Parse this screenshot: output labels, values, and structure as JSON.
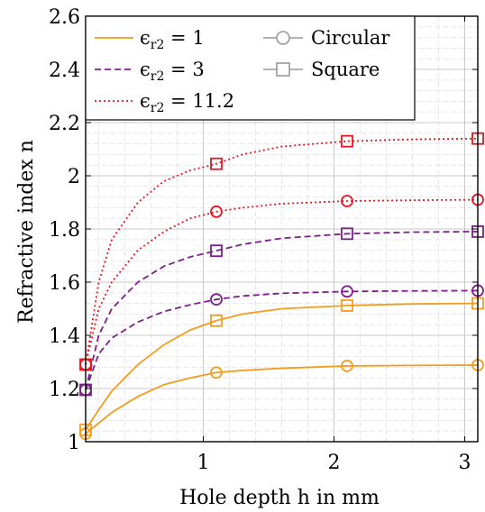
{
  "chart_data": {
    "type": "line",
    "xlabel": "Hole depth h in mm",
    "ylabel": "Refractive index n",
    "xlim": [
      0.1,
      3.1
    ],
    "ylim": [
      1.0,
      2.6
    ],
    "xticks": [
      1,
      2,
      3
    ],
    "yticks": [
      1,
      1.2,
      1.4,
      1.6,
      1.8,
      2.0,
      2.2,
      2.4,
      2.6
    ],
    "ytick_labels": [
      "1",
      "1.2",
      "1.4",
      "1.6",
      "1.8",
      "2",
      "2.2",
      "2.4",
      "2.6"
    ],
    "grid": true,
    "minor_grid": true,
    "legend_position": "top-left",
    "marker_x": [
      0.1,
      1.1,
      2.1,
      3.1
    ],
    "series": [
      {
        "name": "ε_r2 = 1, Circular",
        "permittivity": "1",
        "shape": "Circular",
        "color": "#f39c20",
        "dash": "solid",
        "x": [
          0.1,
          0.2,
          0.3,
          0.5,
          0.7,
          0.9,
          1.1,
          1.3,
          1.6,
          2.1,
          2.6,
          3.1
        ],
        "y": [
          1.03,
          1.07,
          1.11,
          1.17,
          1.215,
          1.24,
          1.26,
          1.268,
          1.276,
          1.285,
          1.287,
          1.288
        ]
      },
      {
        "name": "ε_r2 = 1, Square",
        "permittivity": "1",
        "shape": "Square",
        "color": "#f39c20",
        "dash": "solid",
        "x": [
          0.1,
          0.2,
          0.3,
          0.5,
          0.7,
          0.9,
          1.1,
          1.3,
          1.6,
          2.1,
          2.6,
          3.1
        ],
        "y": [
          1.045,
          1.12,
          1.19,
          1.29,
          1.365,
          1.42,
          1.455,
          1.48,
          1.5,
          1.512,
          1.518,
          1.52
        ]
      },
      {
        "name": "ε_r2 = 3, Circular",
        "permittivity": "3",
        "shape": "Circular",
        "color": "#7e1e8c",
        "dash": "dashed",
        "x": [
          0.1,
          0.2,
          0.3,
          0.5,
          0.7,
          0.9,
          1.1,
          1.3,
          1.6,
          2.1,
          2.6,
          3.1
        ],
        "y": [
          1.195,
          1.33,
          1.39,
          1.45,
          1.49,
          1.515,
          1.535,
          1.548,
          1.558,
          1.565,
          1.567,
          1.568
        ]
      },
      {
        "name": "ε_r2 = 3, Square",
        "permittivity": "3",
        "shape": "Square",
        "color": "#7e1e8c",
        "dash": "dashed",
        "x": [
          0.1,
          0.2,
          0.3,
          0.5,
          0.7,
          0.9,
          1.1,
          1.3,
          1.6,
          2.1,
          2.6,
          3.1
        ],
        "y": [
          1.195,
          1.4,
          1.5,
          1.6,
          1.66,
          1.695,
          1.718,
          1.742,
          1.765,
          1.782,
          1.788,
          1.79
        ]
      },
      {
        "name": "ε_r2 = 11.2, Circular",
        "permittivity": "11.2",
        "shape": "Circular",
        "color": "#e8141e",
        "dash": "dotted",
        "x": [
          0.1,
          0.2,
          0.3,
          0.5,
          0.7,
          0.9,
          1.1,
          1.3,
          1.6,
          2.1,
          2.6,
          3.1
        ],
        "y": [
          1.29,
          1.5,
          1.6,
          1.72,
          1.79,
          1.84,
          1.865,
          1.88,
          1.895,
          1.905,
          1.908,
          1.91
        ]
      },
      {
        "name": "ε_r2 = 11.2, Square",
        "permittivity": "11.2",
        "shape": "Square",
        "color": "#e8141e",
        "dash": "dotted",
        "x": [
          0.1,
          0.2,
          0.3,
          0.5,
          0.7,
          0.9,
          1.1,
          1.3,
          1.6,
          2.1,
          2.6,
          3.1
        ],
        "y": [
          1.29,
          1.6,
          1.76,
          1.9,
          1.98,
          2.02,
          2.045,
          2.08,
          2.11,
          2.13,
          2.137,
          2.14
        ]
      }
    ],
    "legend": {
      "lines": [
        {
          "prefix": "ϵ",
          "sub": "r2",
          "suffix": " = 1",
          "color": "#f39c20",
          "dash": "solid"
        },
        {
          "prefix": "ϵ",
          "sub": "r2",
          "suffix": " = 3",
          "color": "#7e1e8c",
          "dash": "dashed"
        },
        {
          "prefix": "ϵ",
          "sub": "r2",
          "suffix": " = 11.2",
          "color": "#e8141e",
          "dash": "dotted"
        }
      ],
      "markers": [
        {
          "label": "Circular",
          "marker": "circle",
          "color": "#999999"
        },
        {
          "label": "Square",
          "marker": "square",
          "color": "#999999"
        }
      ]
    }
  }
}
